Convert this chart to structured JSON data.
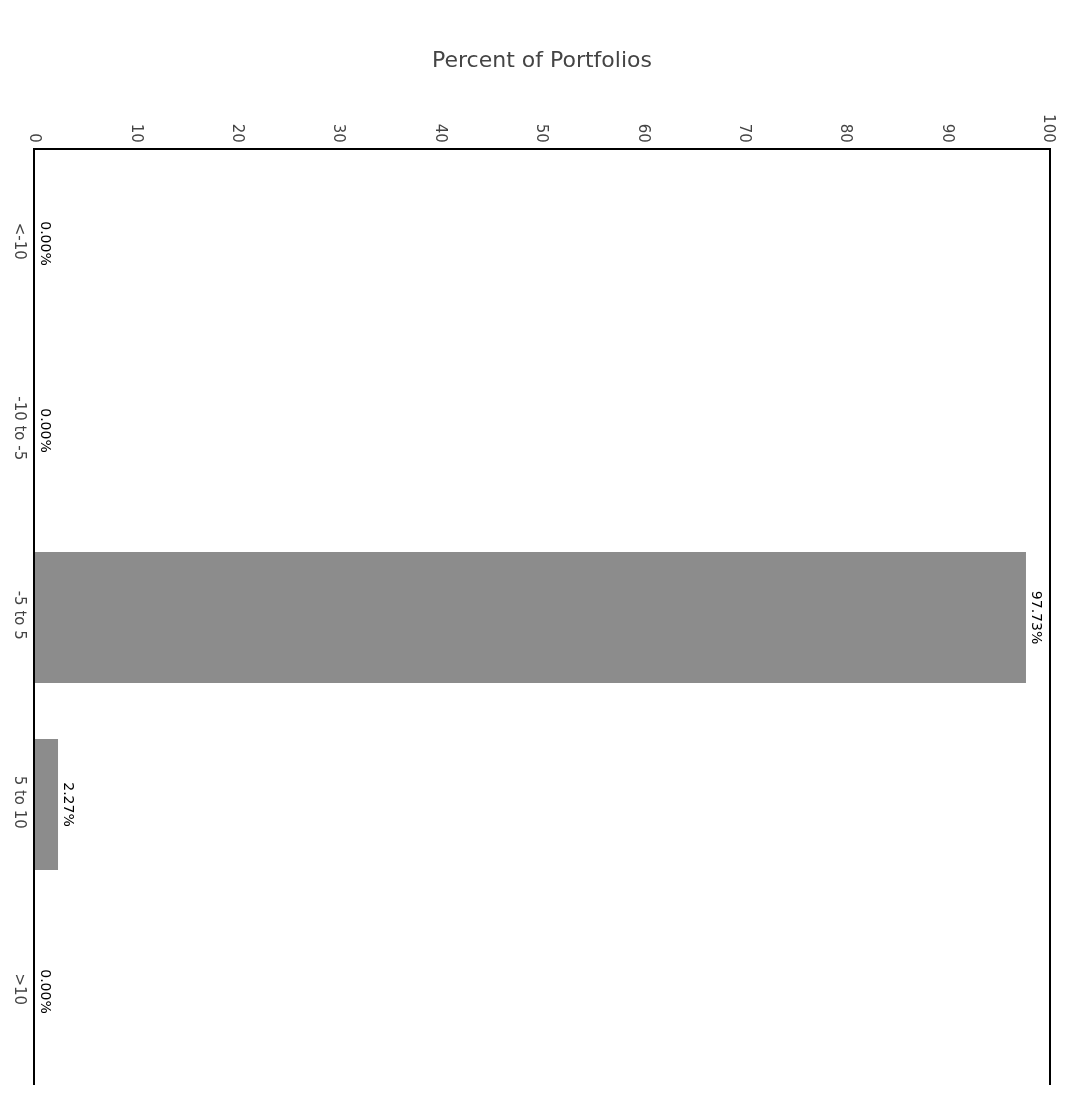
{
  "chart_data": {
    "type": "bar",
    "orientation": "horizontal",
    "xlabel": "Percent of Portfolios",
    "categories": [
      "<-10",
      "-10 to -5",
      "-5 to 5",
      "5 to 10",
      ">10"
    ],
    "values": [
      0,
      0,
      97.73,
      2.27,
      0
    ],
    "value_labels": [
      "0.00%",
      "0.00%",
      "97.73%",
      "2.27%",
      "0.00%"
    ],
    "color": "#8c8c8c",
    "xlim": [
      0,
      100
    ],
    "xticks": [
      0,
      10,
      20,
      30,
      40,
      50,
      60,
      70,
      80,
      90,
      100
    ],
    "grid": false,
    "legend": false
  }
}
